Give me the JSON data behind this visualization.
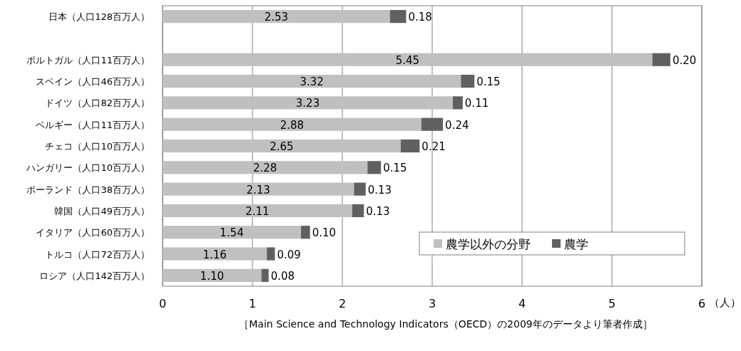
{
  "chart_data": {
    "type": "bar",
    "orientation": "horizontal",
    "stacked": true,
    "categories": [
      "日本（人口128百万人）",
      null,
      "ポルトガル（人口11百万人）",
      "スペイン（人口46百万人）",
      "ドイツ（人口82百万人）",
      "ベルギー（人口11百万人）",
      "チェコ（人口10百万人）",
      "ハンガリー（人口10百万人）",
      "ポーランド（人口38百万人）",
      "韓国（人口49百万人）",
      "イタリア（人口60百万人）",
      "トルコ（人口72百万人）",
      "ロシア（人口142百万人）"
    ],
    "series": [
      {
        "name": "農学以外の分野",
        "color": "#c0c0c0",
        "values": [
          2.53,
          null,
          5.45,
          3.32,
          3.23,
          2.88,
          2.65,
          2.28,
          2.13,
          2.11,
          1.54,
          1.16,
          1.1
        ],
        "value_labels": [
          "2.53",
          null,
          "5.45",
          "3.32",
          "3.23",
          "2.88",
          "2.65",
          "2.28",
          "2.13",
          "2.11",
          "1.54",
          "1.16",
          "1.10"
        ]
      },
      {
        "name": "農学",
        "color": "#606060",
        "values": [
          0.18,
          null,
          0.2,
          0.15,
          0.11,
          0.24,
          0.21,
          0.15,
          0.13,
          0.13,
          0.1,
          0.09,
          0.08
        ],
        "value_labels": [
          "0.18",
          null,
          "0.20",
          "0.15",
          "0.11",
          "0.24",
          "0.21",
          "0.15",
          "0.13",
          "0.13",
          "0.10",
          "0.09",
          "0.08"
        ]
      }
    ],
    "xlim": [
      0,
      6
    ],
    "xticks": [
      0,
      1,
      2,
      3,
      4,
      5,
      6
    ],
    "xlabel": "（人）",
    "grid": "x",
    "legend": "bottom right",
    "annotations": [
      "［Main Science and Technology Indicators（OECD）の2009年のデータより筆者作成］"
    ]
  }
}
